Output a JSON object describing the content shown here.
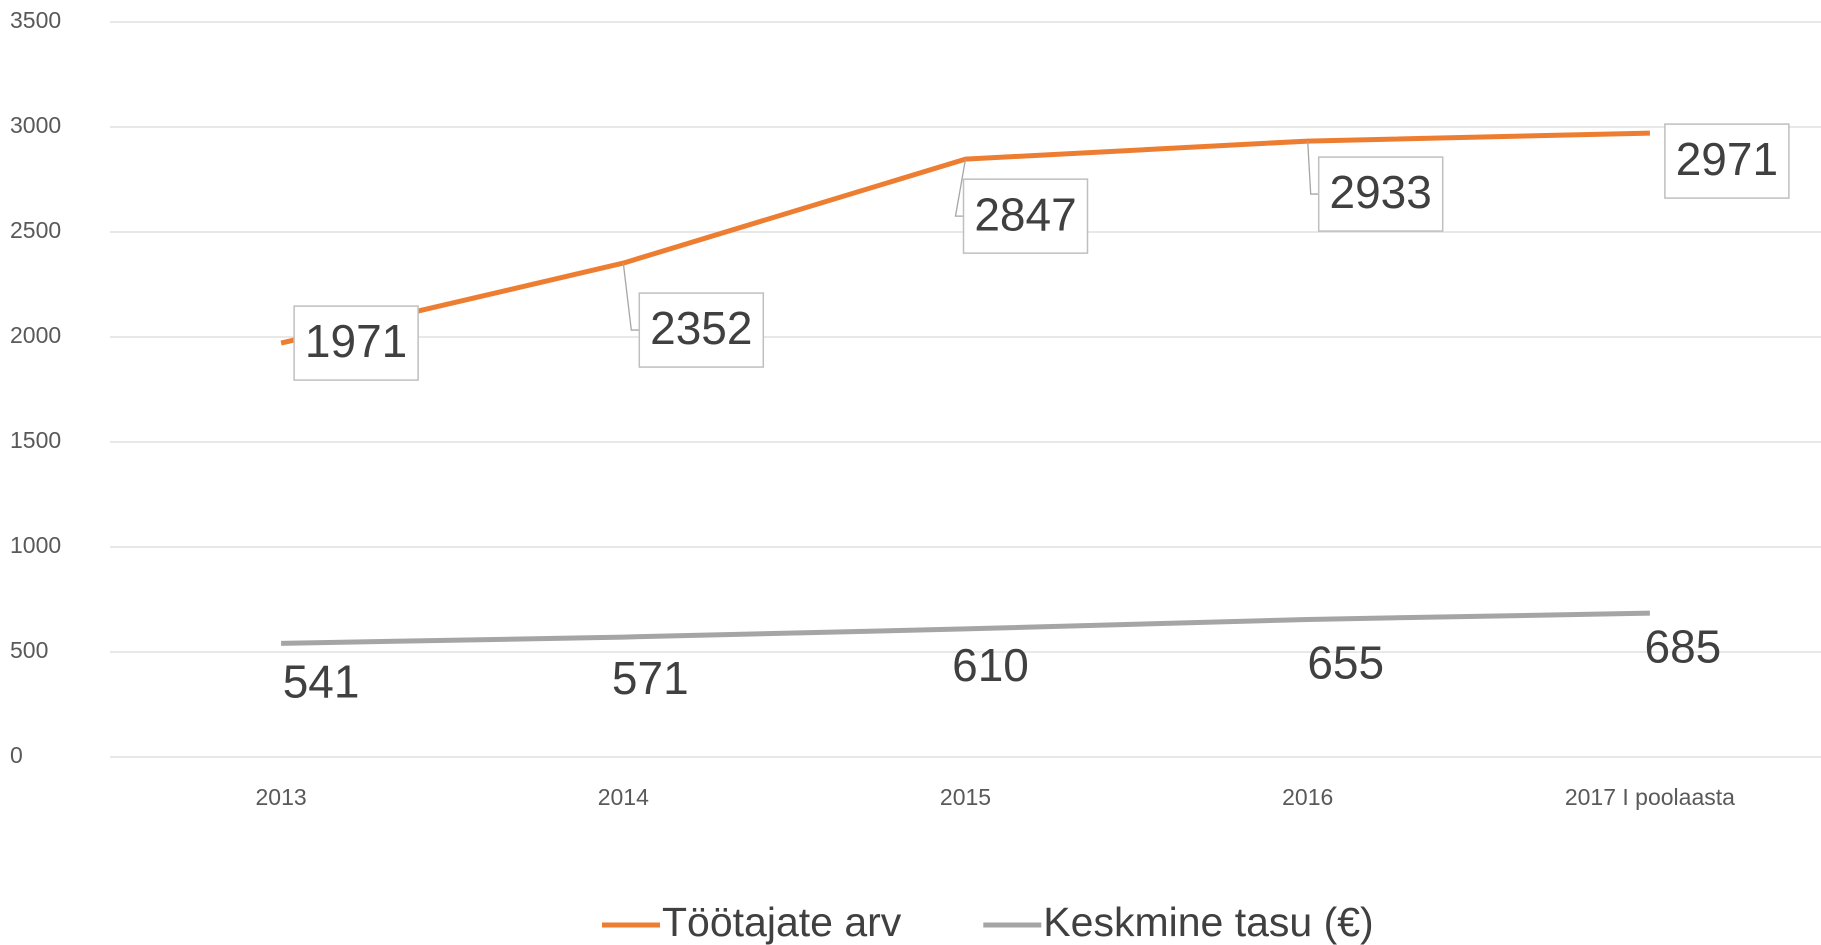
{
  "chart_data": {
    "type": "line",
    "categories": [
      "2013",
      "2014",
      "2015",
      "2016",
      "2017 I poolaasta"
    ],
    "series": [
      {
        "name": "Töötajate arv",
        "color": "#ed7d31",
        "values": [
          1971,
          2352,
          2847,
          2933,
          2971
        ]
      },
      {
        "name": "Keskmine tasu (€)",
        "color": "#a5a5a5",
        "values": [
          541,
          571,
          610,
          655,
          685
        ]
      }
    ],
    "ylim": [
      0,
      3500
    ],
    "yticks": [
      0,
      500,
      1000,
      1500,
      2000,
      2500,
      3000,
      3500
    ],
    "grid": true,
    "legend": "bottom"
  }
}
